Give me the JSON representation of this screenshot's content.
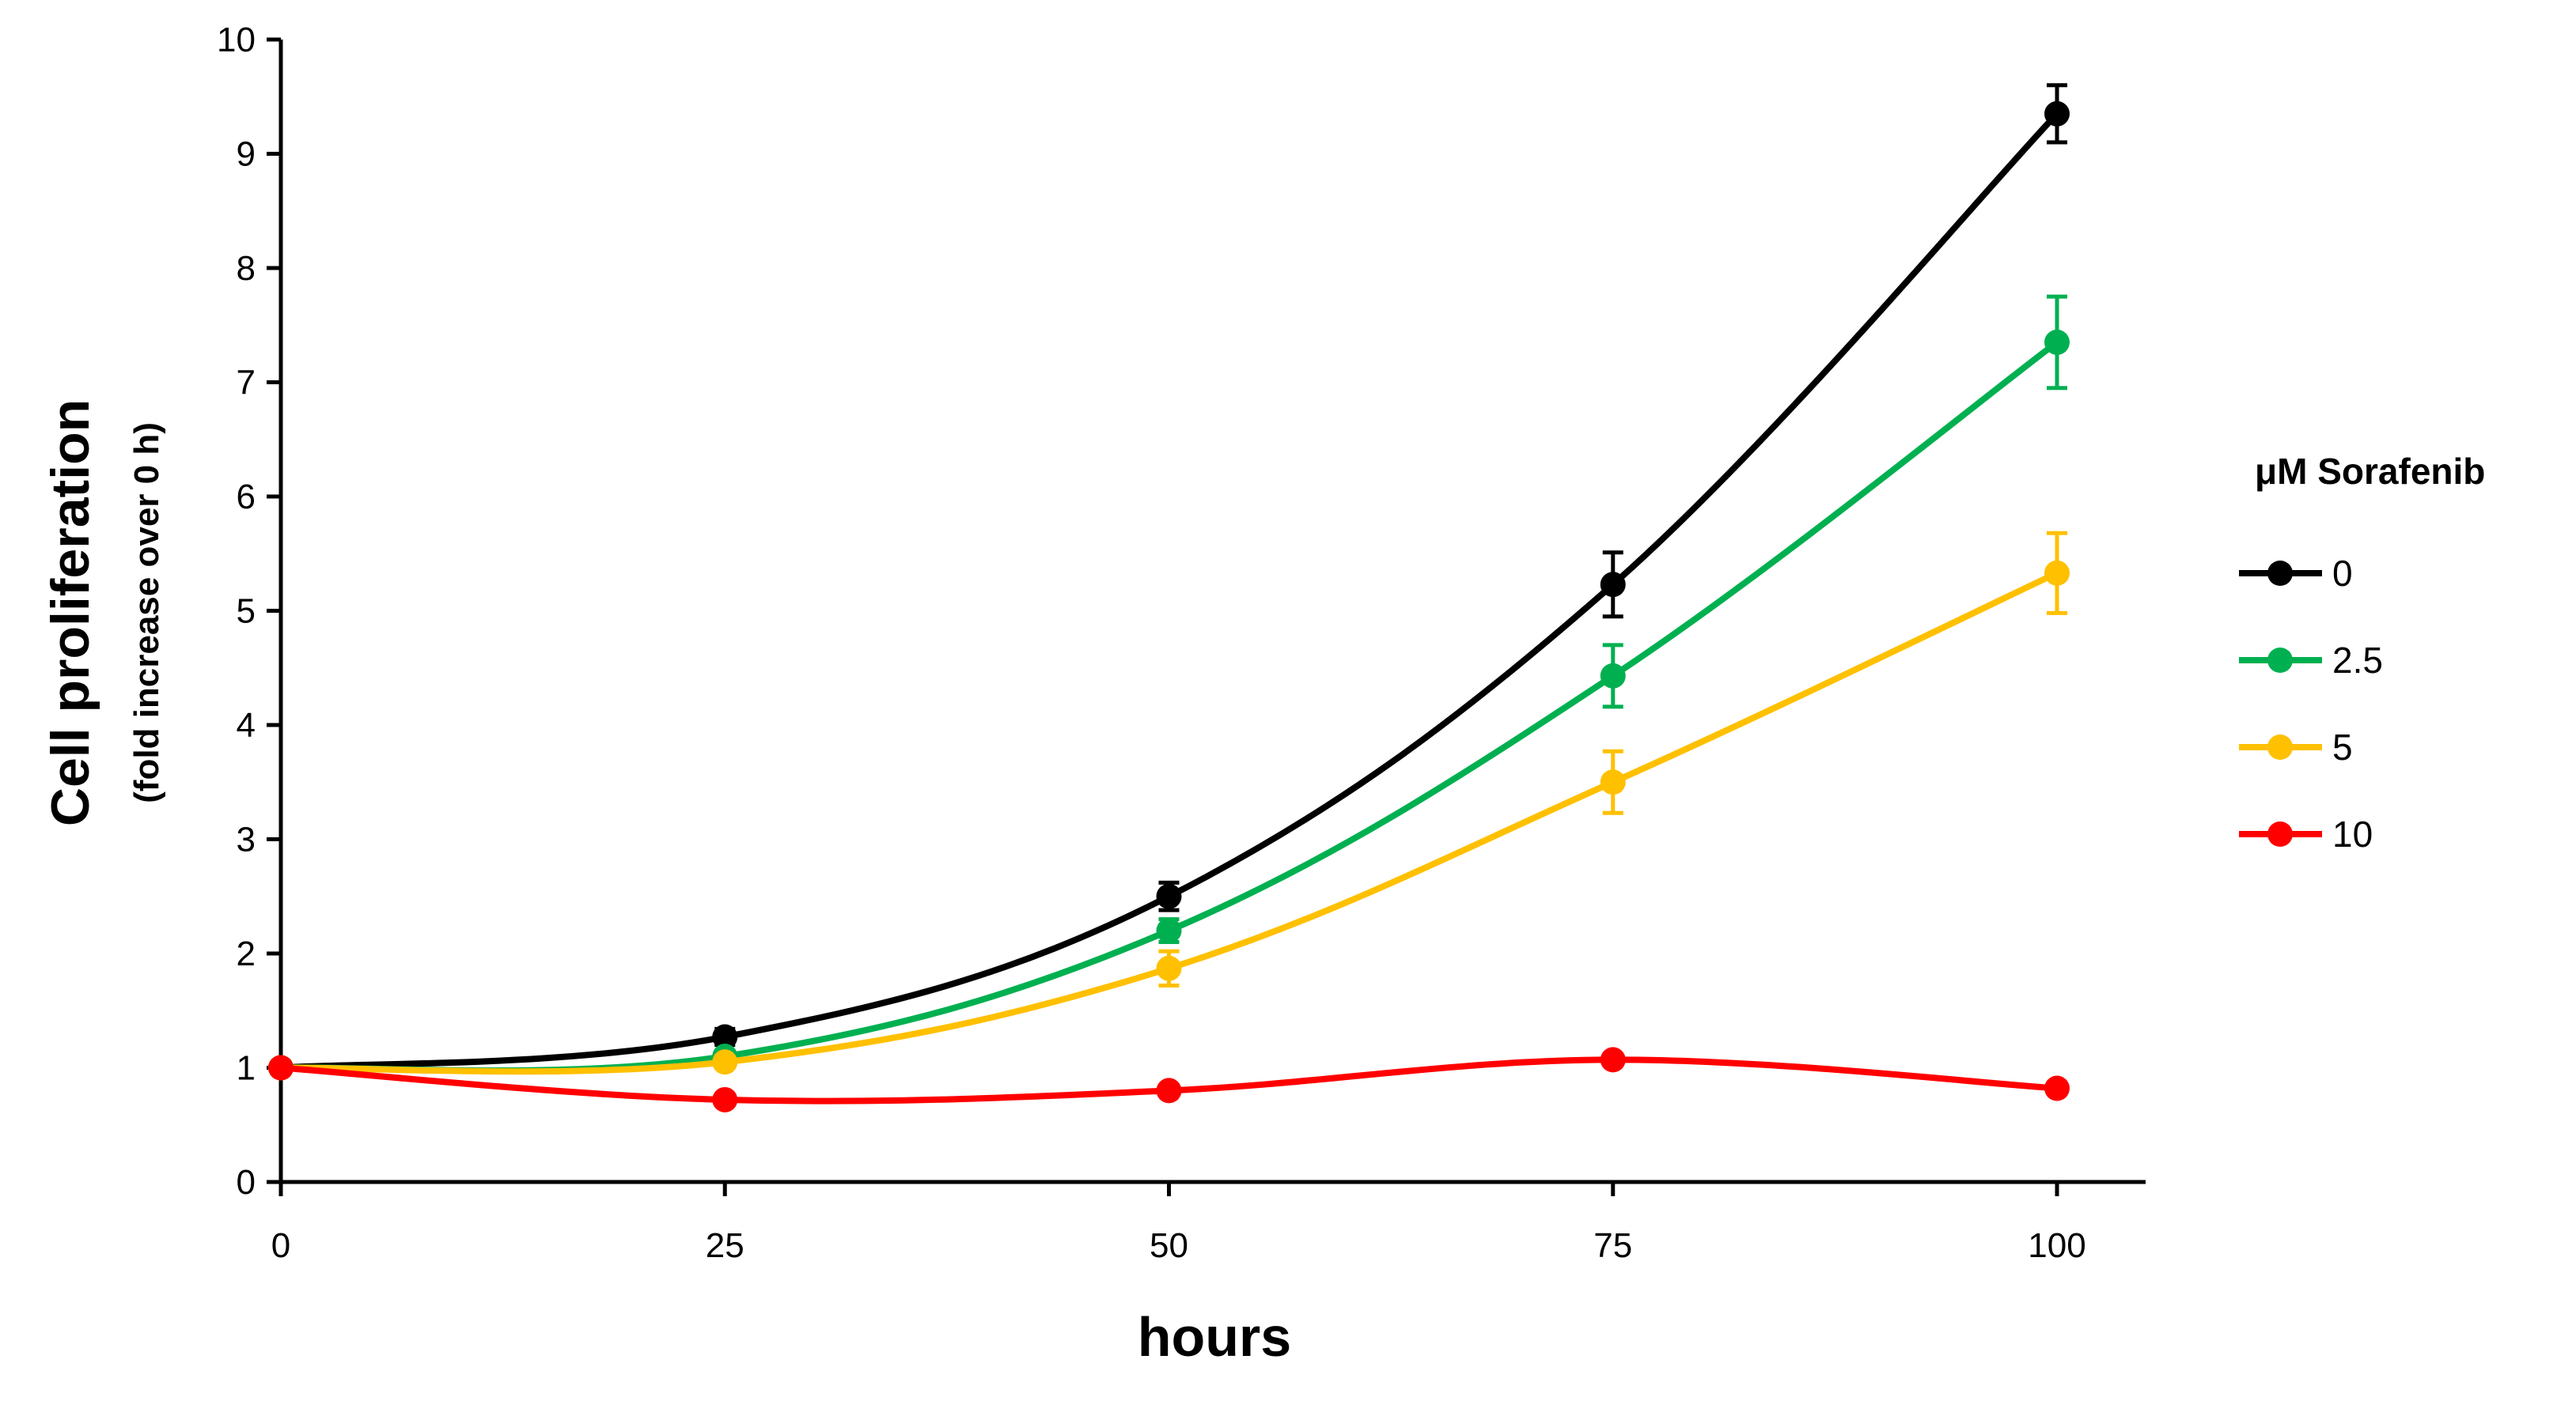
{
  "chart_data": {
    "type": "line",
    "title": "",
    "xlabel": "hours",
    "ylabel": "Cell proliferation",
    "ylabel_sub": "(fold increase over 0 h)",
    "xlim": [
      0,
      100
    ],
    "ylim": [
      0,
      10
    ],
    "x_ticks": [
      0,
      25,
      50,
      75,
      100
    ],
    "y_ticks": [
      0,
      1,
      2,
      3,
      4,
      5,
      6,
      7,
      8,
      9,
      10
    ],
    "grid": false,
    "legend_position": "right",
    "legend_title": "μM Sorafenib",
    "x": [
      0,
      25,
      50,
      75,
      100
    ],
    "series": [
      {
        "name": "0",
        "color": "#000000",
        "values": [
          1.0,
          1.27,
          2.5,
          5.23,
          9.35
        ],
        "errors": [
          0,
          0.07,
          0.12,
          0.28,
          0.25
        ]
      },
      {
        "name": "2.5",
        "color": "#00b050",
        "values": [
          1.0,
          1.1,
          2.2,
          4.43,
          7.35
        ],
        "errors": [
          0,
          0.05,
          0.1,
          0.27,
          0.4
        ]
      },
      {
        "name": "5",
        "color": "#ffc000",
        "values": [
          1.0,
          1.05,
          1.87,
          3.5,
          5.33
        ],
        "errors": [
          0,
          0.05,
          0.15,
          0.27,
          0.35
        ]
      },
      {
        "name": "10",
        "color": "#ff0000",
        "values": [
          1.0,
          0.72,
          0.8,
          1.07,
          0.82
        ],
        "errors": [
          0,
          0.04,
          0.04,
          0.04,
          0.05
        ]
      }
    ]
  }
}
